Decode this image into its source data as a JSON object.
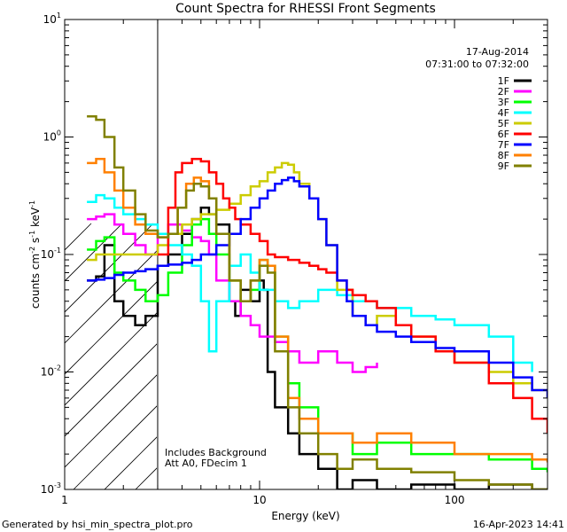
{
  "chart_data": {
    "type": "line",
    "title": "Count Spectra for RHESSI Front Segments",
    "xlabel": "Energy (keV)",
    "ylabel_parts": {
      "base": "counts cm",
      "exp1": "-2",
      "s": " s",
      "exp2": "-1",
      "kev": " keV",
      "exp3": "-1"
    },
    "x_scale": "log",
    "y_scale": "log",
    "xlim": [
      1,
      300
    ],
    "ylim": [
      0.001,
      10
    ],
    "x_ticks": [
      {
        "value": 1,
        "label": "1"
      },
      {
        "value": 10,
        "label": "10"
      },
      {
        "value": 100,
        "label": "100"
      }
    ],
    "y_ticks": [
      {
        "value": 0.001,
        "base": "10",
        "exp": "-3"
      },
      {
        "value": 0.01,
        "base": "10",
        "exp": "-2"
      },
      {
        "value": 0.1,
        "base": "10",
        "exp": "-1"
      },
      {
        "value": 1,
        "base": "10",
        "exp": "0"
      },
      {
        "value": 10,
        "base": "10",
        "exp": "1"
      }
    ],
    "excluded_region": [
      1,
      3
    ],
    "date": "17-Aug-2014",
    "time_range": "07:31:00 to 07:32:00",
    "annotation_lines": [
      "Includes Background",
      "Att A0, FDecim 1"
    ],
    "footer_left": "Generated by hsi_min_spectra_plot.pro",
    "footer_right": "16-Apr-2023 14:41",
    "legend_position": "top-right",
    "series": [
      {
        "name": "1F",
        "color": "#000000",
        "values": [
          [
            1.3,
            0.06
          ],
          [
            1.45,
            0.065
          ],
          [
            1.6,
            0.12
          ],
          [
            1.8,
            0.04
          ],
          [
            2.0,
            0.03
          ],
          [
            2.3,
            0.025
          ],
          [
            2.6,
            0.03
          ],
          [
            3.0,
            0.08
          ],
          [
            3.4,
            0.1
          ],
          [
            4.0,
            0.15
          ],
          [
            4.5,
            0.2
          ],
          [
            5.0,
            0.25
          ],
          [
            5.5,
            0.22
          ],
          [
            6.0,
            0.18
          ],
          [
            7.0,
            0.04
          ],
          [
            7.5,
            0.03
          ],
          [
            8.0,
            0.05
          ],
          [
            9.0,
            0.04
          ],
          [
            10,
            0.06
          ],
          [
            10.5,
            0.05
          ],
          [
            11,
            0.01
          ],
          [
            12,
            0.005
          ],
          [
            14,
            0.003
          ],
          [
            16,
            0.002
          ],
          [
            20,
            0.0015
          ],
          [
            25,
            0.001
          ],
          [
            30,
            0.0012
          ],
          [
            40,
            0.001
          ],
          [
            60,
            0.0011
          ],
          [
            100,
            0.001
          ],
          [
            150,
            0.0011
          ],
          [
            250,
            0.001
          ],
          [
            300,
            0.001
          ]
        ]
      },
      {
        "name": "2F",
        "color": "#ff00ff",
        "values": [
          [
            1.3,
            0.2
          ],
          [
            1.45,
            0.21
          ],
          [
            1.6,
            0.22
          ],
          [
            1.8,
            0.18
          ],
          [
            2.0,
            0.15
          ],
          [
            2.3,
            0.12
          ],
          [
            2.6,
            0.1
          ],
          [
            3.0,
            0.15
          ],
          [
            3.4,
            0.18
          ],
          [
            4.0,
            0.16
          ],
          [
            4.5,
            0.14
          ],
          [
            5.0,
            0.13
          ],
          [
            5.5,
            0.1
          ],
          [
            6.0,
            0.06
          ],
          [
            7.0,
            0.04
          ],
          [
            8.0,
            0.03
          ],
          [
            9.0,
            0.025
          ],
          [
            10,
            0.02
          ],
          [
            12,
            0.018
          ],
          [
            14,
            0.015
          ],
          [
            16,
            0.012
          ],
          [
            20,
            0.015
          ],
          [
            25,
            0.012
          ],
          [
            30,
            0.01
          ],
          [
            35,
            0.011
          ],
          [
            40,
            0.012
          ]
        ]
      },
      {
        "name": "3F",
        "color": "#00ff00",
        "values": [
          [
            1.3,
            0.11
          ],
          [
            1.45,
            0.13
          ],
          [
            1.6,
            0.14
          ],
          [
            1.8,
            0.07
          ],
          [
            2.0,
            0.06
          ],
          [
            2.3,
            0.05
          ],
          [
            2.6,
            0.04
          ],
          [
            3.0,
            0.045
          ],
          [
            3.4,
            0.07
          ],
          [
            4.0,
            0.12
          ],
          [
            4.5,
            0.18
          ],
          [
            5.0,
            0.2
          ],
          [
            5.5,
            0.15
          ],
          [
            6.0,
            0.1
          ],
          [
            7.0,
            0.06
          ],
          [
            8.0,
            0.04
          ],
          [
            9.0,
            0.05
          ],
          [
            10,
            0.09
          ],
          [
            11,
            0.08
          ],
          [
            12,
            0.02
          ],
          [
            14,
            0.008
          ],
          [
            16,
            0.005
          ],
          [
            20,
            0.003
          ],
          [
            30,
            0.002
          ],
          [
            40,
            0.0025
          ],
          [
            60,
            0.002
          ],
          [
            100,
            0.002
          ],
          [
            150,
            0.0018
          ],
          [
            250,
            0.0015
          ],
          [
            300,
            0.0014
          ]
        ]
      },
      {
        "name": "4F",
        "color": "#00ffff",
        "values": [
          [
            1.3,
            0.28
          ],
          [
            1.45,
            0.32
          ],
          [
            1.6,
            0.3
          ],
          [
            1.8,
            0.25
          ],
          [
            2.0,
            0.22
          ],
          [
            2.3,
            0.2
          ],
          [
            2.6,
            0.18
          ],
          [
            3.0,
            0.15
          ],
          [
            3.4,
            0.12
          ],
          [
            4.0,
            0.1
          ],
          [
            4.5,
            0.08
          ],
          [
            5.0,
            0.04
          ],
          [
            5.5,
            0.015
          ],
          [
            6.0,
            0.04
          ],
          [
            7.0,
            0.08
          ],
          [
            8.0,
            0.1
          ],
          [
            9.0,
            0.07
          ],
          [
            10,
            0.05
          ],
          [
            12,
            0.04
          ],
          [
            14,
            0.035
          ],
          [
            16,
            0.04
          ],
          [
            20,
            0.05
          ],
          [
            25,
            0.045
          ],
          [
            30,
            0.04
          ],
          [
            40,
            0.035
          ],
          [
            60,
            0.03
          ],
          [
            80,
            0.028
          ],
          [
            100,
            0.025
          ],
          [
            150,
            0.02
          ],
          [
            200,
            0.012
          ],
          [
            250,
            0.01
          ]
        ]
      },
      {
        "name": "5F",
        "color": "#cccc00",
        "values": [
          [
            1.3,
            0.09
          ],
          [
            1.45,
            0.1
          ],
          [
            1.6,
            0.1
          ],
          [
            1.8,
            0.1
          ],
          [
            2.0,
            0.1
          ],
          [
            2.3,
            0.1
          ],
          [
            2.6,
            0.1
          ],
          [
            3.0,
            0.12
          ],
          [
            3.4,
            0.15
          ],
          [
            4.0,
            0.18
          ],
          [
            4.5,
            0.2
          ],
          [
            5.0,
            0.22
          ],
          [
            6.0,
            0.24
          ],
          [
            7.0,
            0.27
          ],
          [
            8.0,
            0.32
          ],
          [
            9.0,
            0.38
          ],
          [
            10,
            0.42
          ],
          [
            11,
            0.5
          ],
          [
            12,
            0.55
          ],
          [
            13,
            0.6
          ],
          [
            14,
            0.58
          ],
          [
            15,
            0.5
          ],
          [
            16,
            0.4
          ],
          [
            18,
            0.3
          ],
          [
            20,
            0.2
          ],
          [
            22,
            0.12
          ],
          [
            25,
            0.05
          ],
          [
            30,
            0.03
          ],
          [
            35,
            0.025
          ],
          [
            40,
            0.03
          ],
          [
            50,
            0.025
          ],
          [
            60,
            0.02
          ],
          [
            80,
            0.015
          ],
          [
            100,
            0.012
          ],
          [
            150,
            0.01
          ],
          [
            200,
            0.008
          ],
          [
            250,
            0.007
          ],
          [
            300,
            0.006
          ]
        ]
      },
      {
        "name": "6F",
        "color": "#ff0000",
        "values": [
          [
            3.0,
            0.1
          ],
          [
            3.4,
            0.25
          ],
          [
            3.7,
            0.5
          ],
          [
            4.0,
            0.6
          ],
          [
            4.5,
            0.65
          ],
          [
            5.0,
            0.62
          ],
          [
            5.5,
            0.5
          ],
          [
            6.0,
            0.4
          ],
          [
            6.5,
            0.3
          ],
          [
            7.0,
            0.25
          ],
          [
            7.5,
            0.2
          ],
          [
            8.0,
            0.18
          ],
          [
            9.0,
            0.15
          ],
          [
            10,
            0.13
          ],
          [
            11,
            0.1
          ],
          [
            12,
            0.095
          ],
          [
            14,
            0.09
          ],
          [
            16,
            0.085
          ],
          [
            18,
            0.08
          ],
          [
            20,
            0.075
          ],
          [
            22,
            0.07
          ],
          [
            25,
            0.06
          ],
          [
            28,
            0.05
          ],
          [
            30,
            0.045
          ],
          [
            35,
            0.04
          ],
          [
            40,
            0.035
          ],
          [
            50,
            0.025
          ],
          [
            60,
            0.02
          ],
          [
            80,
            0.015
          ],
          [
            100,
            0.012
          ],
          [
            150,
            0.008
          ],
          [
            200,
            0.006
          ],
          [
            250,
            0.004
          ],
          [
            300,
            0.003
          ]
        ]
      },
      {
        "name": "7F",
        "color": "#0000ff",
        "values": [
          [
            1.3,
            0.06
          ],
          [
            1.45,
            0.061
          ],
          [
            1.6,
            0.063
          ],
          [
            1.8,
            0.067
          ],
          [
            2.0,
            0.07
          ],
          [
            2.3,
            0.072
          ],
          [
            2.6,
            0.075
          ],
          [
            3.0,
            0.08
          ],
          [
            3.4,
            0.082
          ],
          [
            4.0,
            0.085
          ],
          [
            4.5,
            0.09
          ],
          [
            5.0,
            0.1
          ],
          [
            6.0,
            0.12
          ],
          [
            7.0,
            0.15
          ],
          [
            8.0,
            0.2
          ],
          [
            9.0,
            0.25
          ],
          [
            10,
            0.3
          ],
          [
            11,
            0.35
          ],
          [
            12,
            0.4
          ],
          [
            13,
            0.43
          ],
          [
            14,
            0.45
          ],
          [
            15,
            0.42
          ],
          [
            16,
            0.38
          ],
          [
            18,
            0.3
          ],
          [
            20,
            0.2
          ],
          [
            22,
            0.12
          ],
          [
            25,
            0.06
          ],
          [
            28,
            0.04
          ],
          [
            30,
            0.03
          ],
          [
            35,
            0.025
          ],
          [
            40,
            0.022
          ],
          [
            50,
            0.02
          ],
          [
            60,
            0.018
          ],
          [
            80,
            0.016
          ],
          [
            100,
            0.015
          ],
          [
            150,
            0.012
          ],
          [
            200,
            0.009
          ],
          [
            250,
            0.007
          ],
          [
            300,
            0.006
          ]
        ]
      },
      {
        "name": "8F",
        "color": "#ff8000",
        "values": [
          [
            1.3,
            0.6
          ],
          [
            1.45,
            0.65
          ],
          [
            1.6,
            0.5
          ],
          [
            1.8,
            0.35
          ],
          [
            2.0,
            0.25
          ],
          [
            2.3,
            0.18
          ],
          [
            2.6,
            0.15
          ],
          [
            3.0,
            0.14
          ],
          [
            3.4,
            0.15
          ],
          [
            3.8,
            0.25
          ],
          [
            4.2,
            0.4
          ],
          [
            4.6,
            0.45
          ],
          [
            5.0,
            0.42
          ],
          [
            5.5,
            0.3
          ],
          [
            6.0,
            0.15
          ],
          [
            7.0,
            0.06
          ],
          [
            8.0,
            0.04
          ],
          [
            9.0,
            0.06
          ],
          [
            10,
            0.09
          ],
          [
            11,
            0.08
          ],
          [
            12,
            0.02
          ],
          [
            14,
            0.006
          ],
          [
            16,
            0.004
          ],
          [
            20,
            0.003
          ],
          [
            30,
            0.0025
          ],
          [
            40,
            0.003
          ],
          [
            60,
            0.0025
          ],
          [
            100,
            0.002
          ],
          [
            150,
            0.002
          ],
          [
            250,
            0.0018
          ],
          [
            300,
            0.0017
          ]
        ]
      },
      {
        "name": "9F",
        "color": "#808000",
        "values": [
          [
            1.3,
            1.5
          ],
          [
            1.45,
            1.4
          ],
          [
            1.6,
            1.0
          ],
          [
            1.8,
            0.55
          ],
          [
            2.0,
            0.35
          ],
          [
            2.3,
            0.22
          ],
          [
            2.6,
            0.16
          ],
          [
            3.0,
            0.14
          ],
          [
            3.4,
            0.15
          ],
          [
            3.8,
            0.25
          ],
          [
            4.2,
            0.35
          ],
          [
            4.6,
            0.4
          ],
          [
            5.0,
            0.38
          ],
          [
            5.5,
            0.3
          ],
          [
            6.0,
            0.15
          ],
          [
            7.0,
            0.06
          ],
          [
            8.0,
            0.04
          ],
          [
            9.0,
            0.06
          ],
          [
            10,
            0.08
          ],
          [
            11,
            0.07
          ],
          [
            12,
            0.015
          ],
          [
            14,
            0.005
          ],
          [
            16,
            0.003
          ],
          [
            20,
            0.002
          ],
          [
            25,
            0.0015
          ],
          [
            30,
            0.0018
          ],
          [
            40,
            0.0015
          ],
          [
            60,
            0.0014
          ],
          [
            100,
            0.0012
          ],
          [
            150,
            0.0011
          ],
          [
            250,
            0.001
          ],
          [
            300,
            0.001
          ]
        ]
      }
    ]
  }
}
